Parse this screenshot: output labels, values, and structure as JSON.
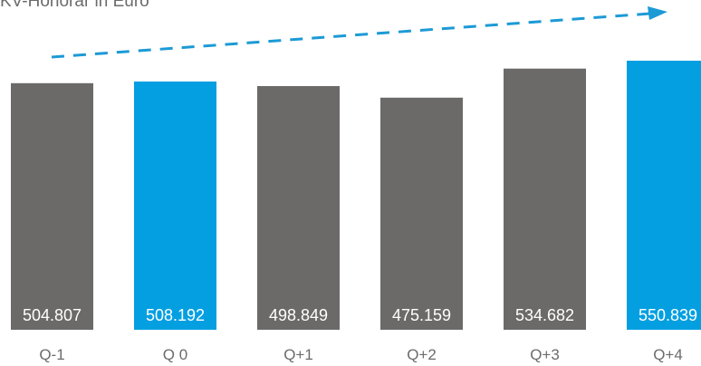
{
  "chart_data": {
    "type": "bar",
    "title": "KV-Honorar in Euro",
    "categories": [
      "Q-1",
      "Q 0",
      "Q+1",
      "Q+2",
      "Q+3",
      "Q+4"
    ],
    "values": [
      504807,
      508192,
      498849,
      475159,
      534682,
      550839
    ],
    "value_labels": [
      "504.807",
      "508.192",
      "498.849",
      "475.159",
      "534.682",
      "550.839"
    ],
    "bar_colors": [
      "#6b6a69",
      "#049fe1",
      "#6b6a69",
      "#6b6a69",
      "#6b6a69",
      "#049fe1"
    ],
    "trend_arrow_color": "#1c9ad6",
    "ylim": [
      0,
      560000
    ],
    "grid": false,
    "legend": "none"
  }
}
